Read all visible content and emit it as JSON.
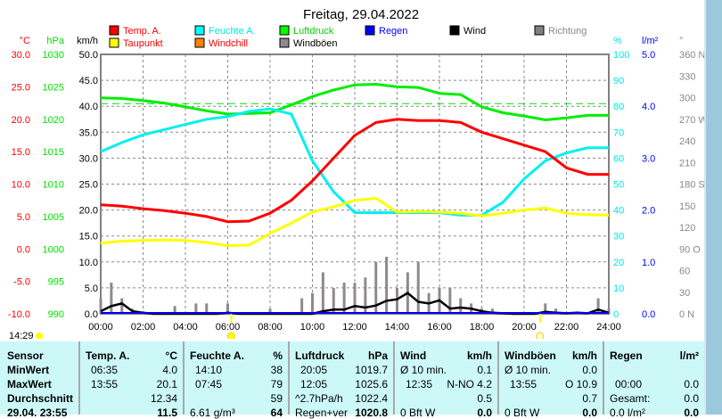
{
  "chart_data": {
    "type": "line",
    "title": "Freitag, 29.04.2022",
    "legend": [
      {
        "label": "Temp. A.",
        "color": "#ff0000"
      },
      {
        "label": "Feuchte A.",
        "color": "#00ffff"
      },
      {
        "label": "Luftdruck",
        "color": "#00ff00"
      },
      {
        "label": "Regen",
        "color": "#0000ff"
      },
      {
        "label": "Wind",
        "color": "#000000"
      },
      {
        "label": "Richtung",
        "color": "#808080"
      },
      {
        "label": "Taupunkt",
        "color": "#ffff00"
      },
      {
        "label": "Windchill",
        "color": "#ff8000"
      },
      {
        "label": "Windböen",
        "color": "#908890"
      }
    ],
    "axes": {
      "temp": {
        "unit": "°C",
        "ticks": [
          "30.0",
          "25.0",
          "20.0",
          "15.0",
          "10.0",
          "5.0",
          "0.0",
          "-5.0",
          "-10.0"
        ],
        "range": [
          -10,
          30
        ]
      },
      "pressure": {
        "unit": "hPa",
        "ticks": [
          "1030",
          "1025",
          "1020",
          "1015",
          "1010",
          "1005",
          "1000",
          "995",
          "990"
        ],
        "range": [
          990,
          1030
        ]
      },
      "wind": {
        "unit": "km/h",
        "ticks": [
          "50.0",
          "45.0",
          "40.0",
          "35.0",
          "30.0",
          "25.0",
          "20.0",
          "15.0",
          "10.0",
          "5.0",
          "0.0"
        ],
        "range": [
          0,
          50
        ]
      },
      "humidity": {
        "unit": "%",
        "ticks": [
          "100",
          "90",
          "80",
          "70",
          "60",
          "50",
          "40",
          "30",
          "20",
          "10",
          "0"
        ],
        "range": [
          0,
          100
        ]
      },
      "rain": {
        "unit": "l/m²",
        "ticks": [
          "5.0",
          "4.0",
          "3.0",
          "2.0",
          "1.0",
          "0.0"
        ],
        "range": [
          0,
          5
        ]
      },
      "direction": {
        "unit": "°",
        "ticks": [
          "360 N",
          "330",
          "300",
          "270 W",
          "240",
          "210",
          "180 S",
          "150",
          "120",
          "90 O",
          "60",
          "30",
          "0 N"
        ],
        "range": [
          0,
          360
        ]
      },
      "x": {
        "ticks": [
          "00:00",
          "02:00",
          "04:00",
          "06:00",
          "08:00",
          "10:00",
          "12:00",
          "14:00",
          "16:00",
          "18:00",
          "20:00",
          "22:00",
          "24:00"
        ],
        "range": [
          0,
          24
        ]
      }
    },
    "hours": [
      0,
      1,
      2,
      3,
      4,
      5,
      6,
      7,
      8,
      9,
      10,
      11,
      12,
      13,
      14,
      15,
      16,
      17,
      18,
      19,
      20,
      21,
      22,
      23,
      24
    ],
    "temp": [
      6.8,
      6.6,
      6.2,
      5.9,
      5.5,
      5.0,
      4.2,
      4.3,
      5.5,
      7.5,
      10.5,
      14.0,
      17.5,
      19.5,
      20.0,
      19.8,
      19.8,
      19.5,
      18.0,
      17.0,
      16.0,
      15.0,
      12.5,
      11.5,
      11.5
    ],
    "dewpoint": [
      0.9,
      1.2,
      1.3,
      1.4,
      1.3,
      1.0,
      0.5,
      0.6,
      2.4,
      4.0,
      5.7,
      6.5,
      7.5,
      7.8,
      5.7,
      5.8,
      5.7,
      5.5,
      5.1,
      5.5,
      6.0,
      6.3,
      5.5,
      5.3,
      5.2
    ],
    "humidity": [
      62.5,
      66,
      69,
      71,
      73,
      75,
      76,
      78,
      79,
      77,
      59,
      47,
      39,
      39,
      39,
      39,
      39,
      38,
      38,
      43,
      52,
      59,
      62,
      64,
      64
    ],
    "pressure": [
      1023.3,
      1023.2,
      1022.9,
      1022.5,
      1021.9,
      1021.3,
      1020.8,
      1020.9,
      1021.0,
      1022.2,
      1023.5,
      1024.5,
      1025.3,
      1025.4,
      1025.0,
      1024.9,
      1024.0,
      1023.8,
      1021.9,
      1021.0,
      1020.5,
      1019.9,
      1020.2,
      1020.6,
      1020.6
    ],
    "pressure_avg": 1022.4,
    "wind_halfhour": [
      0.5,
      1.5,
      2.0,
      0.5,
      0.2,
      0,
      0,
      0,
      0,
      0,
      0,
      0,
      0.2,
      0,
      0,
      0,
      0,
      0,
      0,
      0,
      0,
      0.5,
      0.8,
      0.8,
      1.5,
      1.2,
      1.6,
      2.5,
      2.8,
      4.0,
      2.3,
      2.0,
      2.6,
      1.0,
      1.2,
      1.0,
      0.5,
      0.2,
      0.1,
      0,
      0,
      0,
      0.4,
      0.2,
      0.1,
      0.2,
      0.1,
      0.8,
      0.2
    ],
    "gusts_halfhour": [
      3,
      6,
      3,
      1,
      0,
      0,
      0,
      1.5,
      0,
      2,
      2,
      0,
      2,
      0,
      0,
      0,
      1,
      0,
      0,
      3,
      4,
      8,
      5,
      6,
      6,
      7,
      10,
      11,
      5,
      8,
      10,
      4,
      5,
      5,
      3,
      2,
      1,
      1,
      0,
      0,
      0,
      0,
      2,
      1,
      0,
      0,
      0,
      3,
      1
    ],
    "rain": 0.0,
    "sunrise": "06:10",
    "sunset": "20:45"
  },
  "status": {
    "time": "14:29"
  },
  "table": {
    "rows": [
      "Sensor",
      "MinWert",
      "MaxWert",
      "Durchschnitt",
      "29.04. 23:55"
    ],
    "temp": {
      "h": "Temp. A.",
      "u": "°C",
      "min_t": "06:35",
      "min": "4.0",
      "max_t": "13:55",
      "max": "20.1",
      "avg": "12.34",
      "cur": "11.5"
    },
    "hum": {
      "h": "Feuchte A.",
      "u": "%",
      "min_t": "14:10",
      "min": "38",
      "max_t": "07:45",
      "max": "79",
      "avg": "59",
      "abs": "6.61 g/m³",
      "cur": "64"
    },
    "press": {
      "h": "Luftdruck",
      "u": "hPa",
      "min_t": "20:05",
      "min": "1019.7",
      "max_t": "12:05",
      "max": "1025.6",
      "trend": "^2.7hPa/h",
      "avg": "1022.4",
      "fc": "Regen+ver",
      "cur": "1020.8"
    },
    "wind": {
      "h": "Wind",
      "u": "km/h",
      "avg_l": "Ø 10 min.",
      "avg10": "0.1",
      "max_t": "12:35",
      "max": "N-NO 4.2",
      "avg": "0.5",
      "bft": "0 Bft W",
      "cur": "0.0"
    },
    "gust": {
      "h": "Windböen",
      "u": "km/h",
      "avg_l": "Ø 10 min.",
      "avg10": "0.0",
      "max_t": "13:55",
      "max": "O 10.9",
      "avg": "0.7",
      "bft": "0 Bft W",
      "cur": "0.0"
    },
    "rain": {
      "h": "Regen",
      "u": "l/m²",
      "t": "00:00",
      "v": "0.0",
      "tot_l": "Gesamt:",
      "tot": "0.0",
      "cur_l": "0.0 l/m²",
      "cur": "0.0"
    }
  }
}
